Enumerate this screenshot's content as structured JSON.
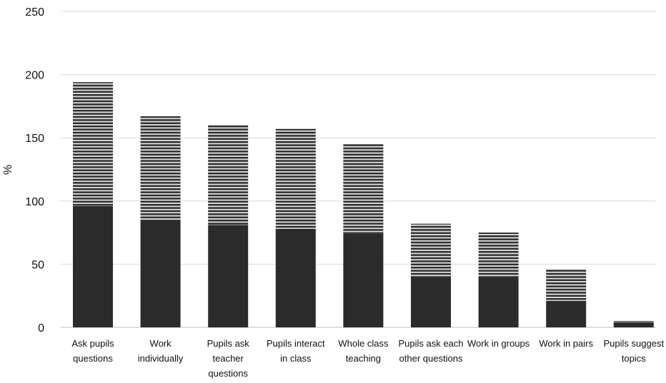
{
  "chart_data": {
    "type": "bar",
    "stacked": true,
    "ylabel": "%",
    "xlabel": "",
    "ylim": [
      0,
      250
    ],
    "yticks": [
      0,
      50,
      100,
      150,
      200,
      250
    ],
    "grid": true,
    "categories": [
      [
        "Ask pupils",
        "questions"
      ],
      [
        "Work",
        "individually"
      ],
      [
        "Pupils ask",
        "teacher",
        "questions"
      ],
      [
        "Pupils interact",
        "in class"
      ],
      [
        "Whole class",
        "teaching"
      ],
      [
        "Pupils ask each",
        "other questions"
      ],
      [
        "Work in groups"
      ],
      [
        "Work in pairs"
      ],
      [
        "Pupils suggest",
        "topics"
      ]
    ],
    "series": [
      {
        "values": [
          96,
          85,
          81,
          78,
          74,
          40,
          40,
          21,
          4
        ]
      },
      {
        "values": [
          98,
          82,
          79,
          79,
          71,
          42,
          35,
          25,
          1
        ]
      }
    ],
    "colors": {
      "solid": "#2b2b2b",
      "stripe_dark": "#2b2b2b",
      "stripe_light": "#d9d9d9",
      "grid": "#d9d9d9",
      "axis": "#bfbfbf"
    }
  }
}
